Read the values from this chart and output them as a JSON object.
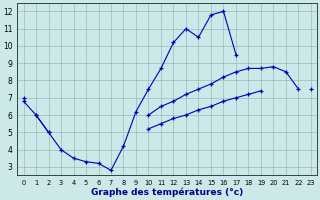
{
  "background_color": "#cce8e8",
  "grid_color": "#99bbbb",
  "line_color": "#0000bb",
  "xlabel": "Graphe des températures (°c)",
  "hours": [
    0,
    1,
    2,
    3,
    4,
    5,
    6,
    7,
    8,
    9,
    10,
    11,
    12,
    13,
    14,
    15,
    16,
    17,
    18,
    19,
    20,
    21,
    22,
    23
  ],
  "curve_top": [
    6.8,
    6.0,
    5.0,
    4.0,
    3.5,
    3.3,
    3.2,
    2.8,
    4.2,
    6.2,
    7.5,
    8.7,
    10.2,
    11.0,
    10.5,
    11.8,
    12.0,
    9.5,
    null,
    null,
    null,
    null,
    null,
    null
  ],
  "curve_mid": [
    7.0,
    null,
    null,
    null,
    null,
    null,
    null,
    null,
    null,
    null,
    6.0,
    6.5,
    6.8,
    7.2,
    7.5,
    7.8,
    8.2,
    8.5,
    8.7,
    8.7,
    8.8,
    8.5,
    7.5,
    null
  ],
  "curve_low": [
    null,
    6.0,
    5.0,
    null,
    null,
    null,
    null,
    null,
    null,
    null,
    5.2,
    5.5,
    5.8,
    6.0,
    6.3,
    6.5,
    6.8,
    7.0,
    7.2,
    7.4,
    null,
    null,
    null,
    7.5
  ],
  "ylim": [
    2.5,
    12.5
  ],
  "xlim": [
    -0.5,
    23.5
  ],
  "yticks": [
    3,
    4,
    5,
    6,
    7,
    8,
    9,
    10,
    11,
    12
  ],
  "xticks": [
    0,
    1,
    2,
    3,
    4,
    5,
    6,
    7,
    8,
    9,
    10,
    11,
    12,
    13,
    14,
    15,
    16,
    17,
    18,
    19,
    20,
    21,
    22,
    23
  ]
}
